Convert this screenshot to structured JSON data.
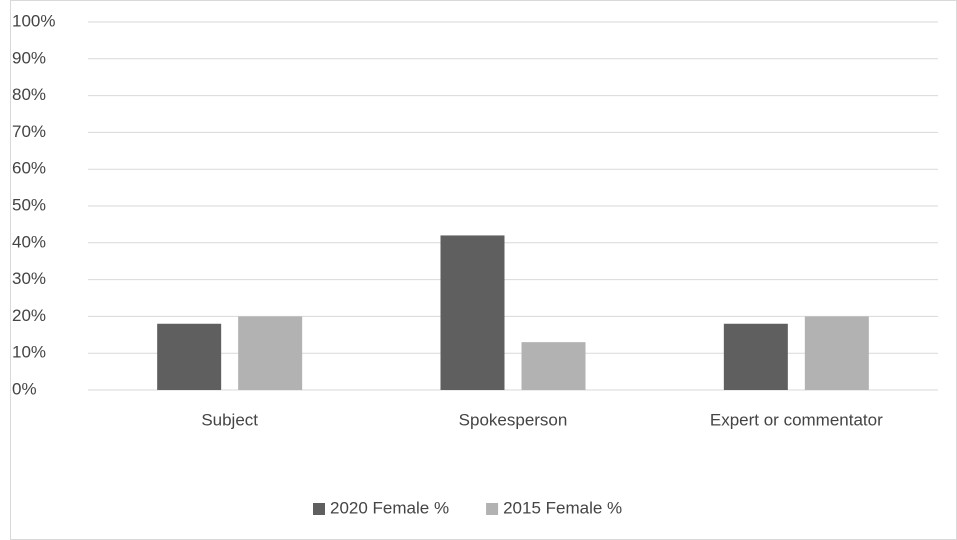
{
  "chart_data": {
    "type": "bar",
    "categories": [
      "Subject",
      "Spokesperson",
      "Expert or commentator"
    ],
    "series": [
      {
        "name": "2020 Female %",
        "color": "#5f5f5f",
        "values": [
          18,
          42,
          18
        ]
      },
      {
        "name": "2015 Female %",
        "color": "#b2b2b2",
        "values": [
          20,
          13,
          20
        ]
      }
    ],
    "ylim": [
      0,
      100
    ],
    "yticks": [
      {
        "value": 0,
        "label": "0%"
      },
      {
        "value": 10,
        "label": "10%"
      },
      {
        "value": 20,
        "label": "20%"
      },
      {
        "value": 30,
        "label": "30%"
      },
      {
        "value": 40,
        "label": "40%"
      },
      {
        "value": 50,
        "label": "50%"
      },
      {
        "value": 60,
        "label": "60%"
      },
      {
        "value": 70,
        "label": "70%"
      },
      {
        "value": 80,
        "label": "80%"
      },
      {
        "value": 90,
        "label": "90%"
      },
      {
        "value": 100,
        "label": "100%"
      }
    ],
    "grid": true,
    "legend": "bottom"
  }
}
